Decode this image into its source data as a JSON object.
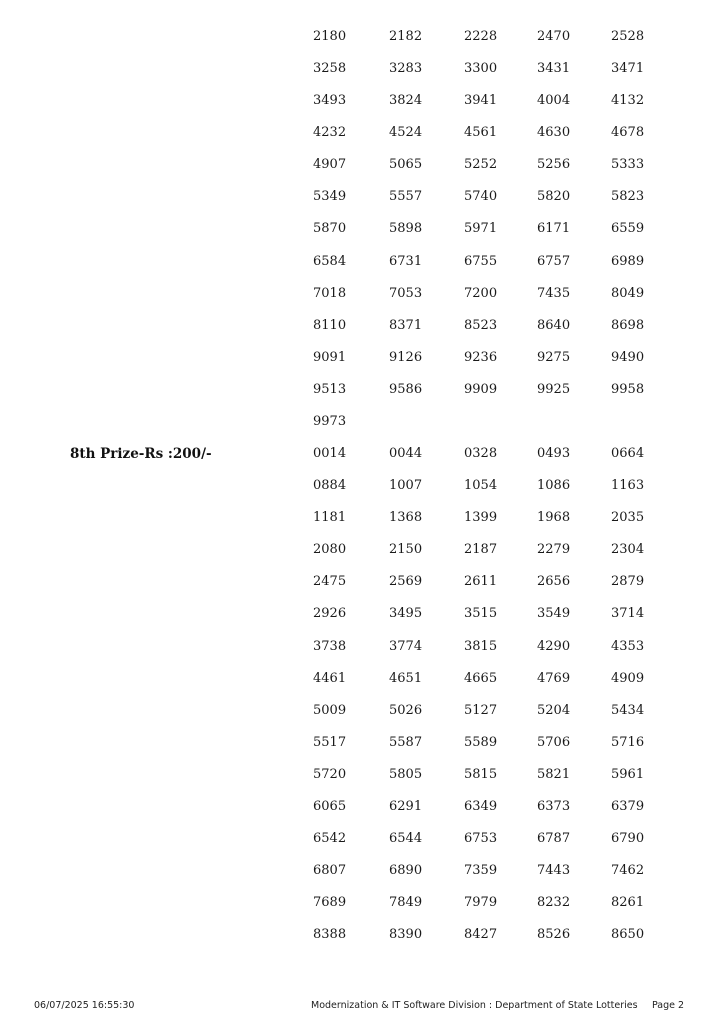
{
  "sections": [
    {
      "label": "",
      "rows": [
        [
          "2180",
          "2182",
          "2228",
          "2470",
          "2528"
        ],
        [
          "3258",
          "3283",
          "3300",
          "3431",
          "3471"
        ],
        [
          "3493",
          "3824",
          "3941",
          "4004",
          "4132"
        ],
        [
          "4232",
          "4524",
          "4561",
          "4630",
          "4678"
        ],
        [
          "4907",
          "5065",
          "5252",
          "5256",
          "5333"
        ],
        [
          "5349",
          "5557",
          "5740",
          "5820",
          "5823"
        ],
        [
          "5870",
          "5898",
          "5971",
          "6171",
          "6559"
        ],
        [
          "6584",
          "6731",
          "6755",
          "6757",
          "6989"
        ],
        [
          "7018",
          "7053",
          "7200",
          "7435",
          "8049"
        ],
        [
          "8110",
          "8371",
          "8523",
          "8640",
          "8698"
        ],
        [
          "9091",
          "9126",
          "9236",
          "9275",
          "9490"
        ],
        [
          "9513",
          "9586",
          "9909",
          "9925",
          "9958"
        ],
        [
          "9973"
        ]
      ]
    },
    {
      "label": "8th Prize-Rs :200/-",
      "rows": [
        [
          "0014",
          "0044",
          "0328",
          "0493",
          "0664"
        ],
        [
          "0884",
          "1007",
          "1054",
          "1086",
          "1163"
        ],
        [
          "1181",
          "1368",
          "1399",
          "1968",
          "2035"
        ],
        [
          "2080",
          "2150",
          "2187",
          "2279",
          "2304"
        ],
        [
          "2475",
          "2569",
          "2611",
          "2656",
          "2879"
        ],
        [
          "2926",
          "3495",
          "3515",
          "3549",
          "3714"
        ],
        [
          "3738",
          "3774",
          "3815",
          "4290",
          "4353"
        ],
        [
          "4461",
          "4651",
          "4665",
          "4769",
          "4909"
        ],
        [
          "5009",
          "5026",
          "5127",
          "5204",
          "5434"
        ],
        [
          "5517",
          "5587",
          "5589",
          "5706",
          "5716"
        ],
        [
          "5720",
          "5805",
          "5815",
          "5821",
          "5961"
        ],
        [
          "6065",
          "6291",
          "6349",
          "6373",
          "6379"
        ],
        [
          "6542",
          "6544",
          "6753",
          "6787",
          "6790"
        ],
        [
          "6807",
          "6890",
          "7359",
          "7443",
          "7462"
        ],
        [
          "7689",
          "7849",
          "7979",
          "8232",
          "8261"
        ],
        [
          "8388",
          "8390",
          "8427",
          "8526",
          "8650"
        ]
      ]
    }
  ],
  "footer": {
    "timestamp": "06/07/2025 16:55:30",
    "organization": "Modernization & IT Software Division : Department of State Lotteries",
    "page": "Page 2"
  }
}
